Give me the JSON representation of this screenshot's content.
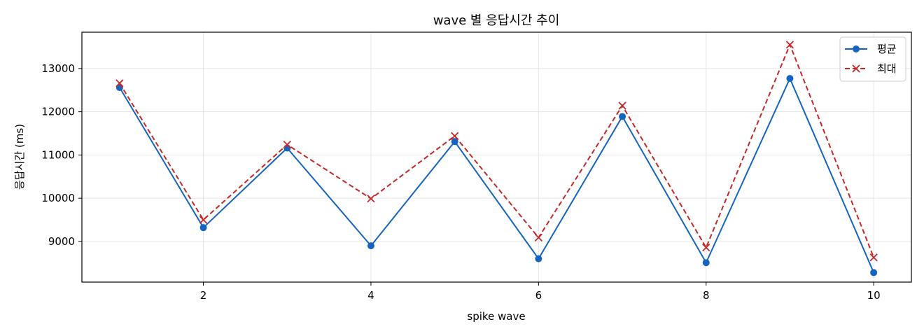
{
  "chart_data": {
    "type": "line",
    "title": "wave 별 응답시간 추이",
    "xlabel": "spike wave",
    "ylabel": "응답시간 (ms)",
    "x": [
      1,
      2,
      3,
      4,
      5,
      6,
      7,
      8,
      9,
      10
    ],
    "x_ticks": [
      2,
      4,
      6,
      8,
      10
    ],
    "y_ticks": [
      9000,
      10000,
      11000,
      12000,
      13000
    ],
    "xlim": [
      0.55,
      10.45
    ],
    "ylim": [
      8060,
      13840
    ],
    "grid": true,
    "legend_position": "top-right",
    "series": [
      {
        "name": "평균",
        "values": [
          12560,
          9320,
          11160,
          8900,
          11310,
          8600,
          11890,
          8510,
          12770,
          8280
        ],
        "color": "#1565c0",
        "line_style": "solid",
        "marker": "circle"
      },
      {
        "name": "최대",
        "values": [
          12660,
          9500,
          11240,
          9990,
          11440,
          9090,
          12140,
          8860,
          13550,
          8630
        ],
        "color": "#c62828",
        "line_style": "dashed",
        "marker": "x"
      }
    ]
  }
}
